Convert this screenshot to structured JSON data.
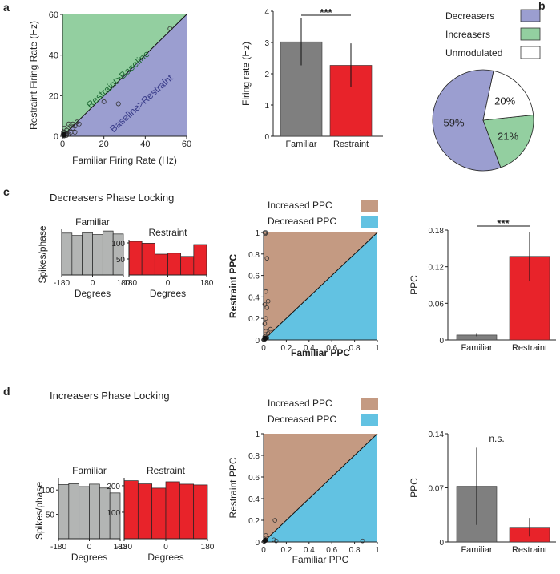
{
  "panels": {
    "a": "a",
    "b": "b",
    "c": "c",
    "d": "d"
  },
  "colors": {
    "green": "#93cfa0",
    "purple": "#9b9ed0",
    "gray": "#7f7f7f",
    "red": "#e8232a",
    "histgray": "#b3b5b4",
    "brown": "#c49a82",
    "cyan": "#62c2e2",
    "white": "#ffffff"
  },
  "chart_data": [
    {
      "id": "a_scatter",
      "type": "scatter",
      "xlabel": "Familiar Firing Rate (Hz)",
      "ylabel": "Restraint Firing Rate (Hz)",
      "xlim": [
        0,
        60
      ],
      "ylim": [
        0,
        60
      ],
      "xticks": [
        0,
        20,
        40,
        60
      ],
      "yticks": [
        0,
        20,
        40,
        60
      ],
      "region_labels": [
        "Restraint>Baseline",
        "Baseline>Restraint"
      ],
      "points": [
        [
          52,
          53
        ],
        [
          20,
          17
        ],
        [
          27,
          16
        ],
        [
          7,
          7
        ],
        [
          6,
          5
        ],
        [
          8,
          6
        ],
        [
          5,
          4
        ],
        [
          3,
          6
        ],
        [
          2,
          3
        ],
        [
          4,
          2
        ],
        [
          1,
          4
        ],
        [
          3,
          1
        ],
        [
          2,
          1
        ],
        [
          1,
          1
        ],
        [
          0.5,
          0.5
        ],
        [
          1,
          0.3
        ],
        [
          0.3,
          1
        ],
        [
          2,
          0.5
        ],
        [
          0.5,
          2
        ],
        [
          5,
          6
        ],
        [
          4,
          5
        ],
        [
          6,
          2
        ],
        [
          0.8,
          0.2
        ],
        [
          1.5,
          1.2
        ]
      ]
    },
    {
      "id": "a_bar",
      "type": "bar",
      "categories": [
        "Familiar",
        "Restraint"
      ],
      "values": [
        3.02,
        2.27
      ],
      "errors": [
        0.75,
        0.7
      ],
      "ylabel": "Firing rate (Hz)",
      "ylim": [
        0,
        4
      ],
      "yticks": [
        0,
        1,
        2,
        3,
        4
      ],
      "significance": "***"
    },
    {
      "id": "b_pie",
      "type": "pie",
      "labels": [
        "Decreasers",
        "Increasers",
        "Unmodulated"
      ],
      "values": [
        59,
        21,
        20
      ],
      "value_labels": [
        "59%",
        "21%",
        "20%"
      ]
    },
    {
      "id": "c_hist_fam",
      "type": "bar",
      "title": "Familiar",
      "x": [
        -150,
        -90,
        -30,
        30,
        90,
        150
      ],
      "values": [
        197,
        186,
        199,
        190,
        207,
        193
      ],
      "ylim": [
        0,
        215
      ],
      "yticks": [],
      "xticks": [
        -180,
        0,
        180
      ],
      "xlabel": "Degrees",
      "ylabel": "Spikes/phase"
    },
    {
      "id": "c_hist_res",
      "type": "bar",
      "title": "Restraint",
      "x": [
        -150,
        -90,
        -30,
        30,
        90,
        150
      ],
      "values": [
        105,
        99,
        65,
        68,
        58,
        95
      ],
      "ylim": [
        0,
        110
      ],
      "yticks": [
        50,
        100
      ],
      "xticks": [
        -180,
        0,
        180
      ],
      "xlabel": "Degrees"
    },
    {
      "id": "c_scatter",
      "type": "scatter",
      "legend": [
        "Increased PPC",
        "Decreased PPC"
      ],
      "xlabel": "Familiar PPC",
      "ylabel": "Restraint PPC",
      "xlim": [
        0,
        1
      ],
      "ylim": [
        0,
        1
      ],
      "xticks": [
        0,
        0.2,
        0.4,
        0.6,
        0.8,
        1
      ],
      "yticks": [
        0,
        0.2,
        0.4,
        0.6,
        0.8,
        1
      ],
      "xticklabels": [
        "0",
        "0.2",
        "0.4",
        "0.6",
        "0.8",
        "1"
      ],
      "yticklabels": [
        "0",
        "0.2",
        "0.4",
        "0.6",
        "0.8",
        "1"
      ],
      "points": [
        [
          0.01,
          1
        ],
        [
          0.02,
          1
        ],
        [
          0.015,
          0.99
        ],
        [
          0.03,
          0.76
        ],
        [
          0.02,
          0.45
        ],
        [
          0.04,
          0.36
        ],
        [
          0.01,
          0.33
        ],
        [
          0.03,
          0.3
        ],
        [
          0.02,
          0.2
        ],
        [
          0.01,
          0.15
        ],
        [
          0.06,
          0.1
        ],
        [
          0.02,
          0.05
        ],
        [
          0.01,
          0.03
        ],
        [
          0.005,
          0.01
        ],
        [
          0.01,
          0.005
        ],
        [
          0.03,
          0.02
        ],
        [
          0.02,
          0.08
        ],
        [
          0.04,
          0.06
        ],
        [
          0.005,
          0.005
        ],
        [
          0.002,
          0.002
        ]
      ]
    },
    {
      "id": "c_bar",
      "type": "bar",
      "categories": [
        "Familiar",
        "Restraint"
      ],
      "values": [
        0.008,
        0.137
      ],
      "errors": [
        0.002,
        0.04
      ],
      "ylabel": "PPC",
      "ylim": [
        0,
        0.18
      ],
      "yticks": [
        0,
        0.06,
        0.12,
        0.18
      ],
      "yticklabels": [
        "0",
        "0.06",
        "0.12",
        "0.18"
      ],
      "significance": "***"
    },
    {
      "id": "d_hist_fam",
      "type": "bar",
      "title": "Familiar",
      "x": [
        -150,
        -90,
        -30,
        30,
        90,
        150
      ],
      "values": [
        111,
        113,
        107,
        112,
        104,
        94
      ],
      "ylim": [
        0,
        125
      ],
      "yticks": [
        50,
        100
      ],
      "xticks": [
        -180,
        0,
        180
      ],
      "xlabel": "Degrees",
      "ylabel": "Spikes/phase"
    },
    {
      "id": "d_hist_res",
      "type": "bar",
      "title": "Restraint",
      "x": [
        -150,
        -90,
        -30,
        30,
        90,
        150
      ],
      "values": [
        219,
        207,
        191,
        215,
        206,
        203
      ],
      "ylim": [
        0,
        230
      ],
      "yticks": [
        100,
        200
      ],
      "xticks": [
        -180,
        0,
        180
      ],
      "xlabel": "Degrees"
    },
    {
      "id": "d_scatter",
      "type": "scatter",
      "legend": [
        "Increased PPC",
        "Decreased PPC"
      ],
      "xlabel": "Familiar PPC",
      "ylabel": "Restraint PPC",
      "xlim": [
        0,
        1
      ],
      "ylim": [
        0,
        1
      ],
      "xticks": [
        0,
        0.2,
        0.4,
        0.6,
        0.8,
        1
      ],
      "yticks": [
        0,
        0.2,
        0.4,
        0.6,
        0.8,
        1
      ],
      "xticklabels": [
        "0",
        "0.2",
        "0.4",
        "0.6",
        "0.8",
        "1"
      ],
      "yticklabels": [
        "0",
        "0.2",
        "0.4",
        "0.6",
        "0.8",
        "1"
      ],
      "points": [
        [
          0.1,
          0.2
        ],
        [
          0.02,
          0.06
        ],
        [
          0.09,
          0.02
        ],
        [
          0.11,
          0.01
        ],
        [
          0.87,
          0.01
        ],
        [
          0.01,
          0.01
        ],
        [
          0.005,
          0.005
        ]
      ]
    },
    {
      "id": "d_bar",
      "type": "bar",
      "categories": [
        "Familiar",
        "Restraint"
      ],
      "values": [
        0.072,
        0.019
      ],
      "errors": [
        0.05,
        0.012
      ],
      "ylabel": "PPC",
      "ylim": [
        0,
        0.14
      ],
      "yticks": [
        0,
        0.07,
        0.14
      ],
      "yticklabels": [
        "0",
        "0.07",
        "0.14"
      ],
      "significance": "n.s."
    }
  ],
  "section_titles": {
    "c": "Decreasers Phase Locking",
    "d": "Increasers Phase Locking"
  }
}
